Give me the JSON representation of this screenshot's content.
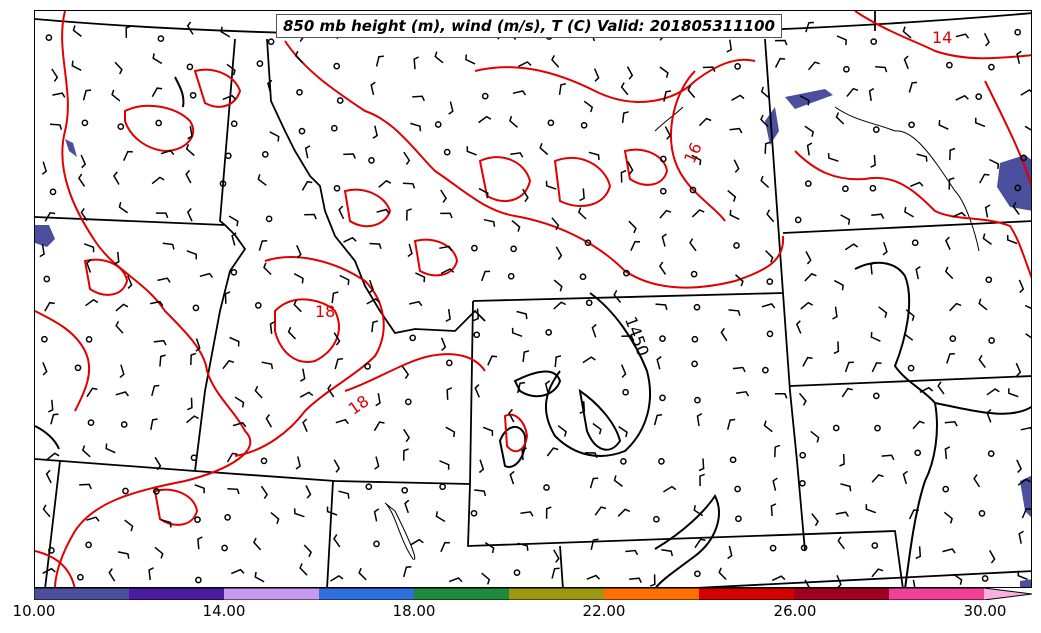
{
  "title": "850 mb height (m), wind (m/s), T (C) Valid: 201805311100",
  "contour_labels": {
    "temperature": [
      "14",
      "16",
      "18",
      "18"
    ],
    "height": [
      "1450"
    ]
  },
  "colorbar": {
    "tick_labels": [
      "10.00",
      "14.00",
      "18.00",
      "22.00",
      "26.00",
      "30.00"
    ],
    "colors": [
      "#4b4f9e",
      "#4a1aa0",
      "#c79af0",
      "#2f6fde",
      "#1f8a3c",
      "#9a9a12",
      "#ff7000",
      "#d40000",
      "#a00020",
      "#f0409a",
      "#f8b0dc"
    ]
  },
  "colors": {
    "temperature_contour": "#e00000",
    "height_contour": "#000000",
    "state_borders": "#000000",
    "low_value_fill": "#4b4f9e"
  }
}
